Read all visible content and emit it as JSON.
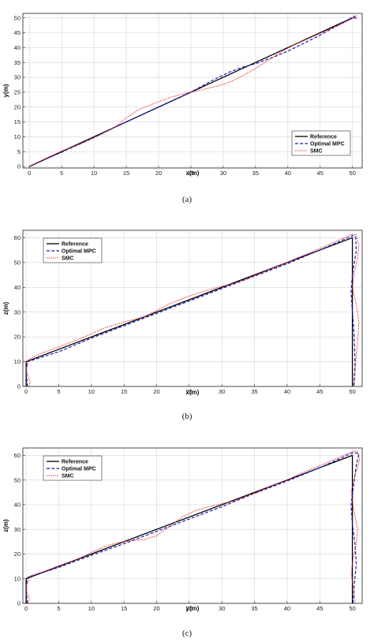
{
  "colors": {
    "reference": "#000000",
    "optimal_mpc": "#1c1cb4",
    "smc": "#ee2222",
    "grid": "#d6d6d6"
  },
  "chart_data": [
    {
      "type": "line",
      "caption": "(a)",
      "xlabel": "x(m)",
      "ylabel": "y(m)",
      "xlim": [
        -1,
        51.5
      ],
      "ylim": [
        -0.5,
        51.5
      ],
      "xticks": [
        0,
        5,
        10,
        15,
        20,
        25,
        30,
        35,
        40,
        45,
        50
      ],
      "yticks": [
        0,
        5,
        10,
        15,
        20,
        25,
        30,
        35,
        40,
        45,
        50
      ],
      "grid": true,
      "legend_position": "bottom-right",
      "series": [
        {
          "name": "Reference",
          "style": "solid",
          "x": [
            0,
            50
          ],
          "y": [
            0,
            50
          ]
        },
        {
          "name": "Optimal MPC",
          "style": "dashed",
          "x": [
            0,
            2,
            5,
            10,
            15,
            20,
            25,
            28,
            31,
            33,
            35,
            38,
            40,
            45,
            48,
            50,
            50.4,
            50.6,
            50.5,
            50.1
          ],
          "y": [
            0,
            2,
            4.8,
            9.8,
            15,
            20,
            25,
            28.6,
            31.8,
            33.4,
            34.6,
            37,
            38.8,
            44.2,
            47.8,
            50.2,
            50.6,
            50.3,
            49.9,
            50
          ]
        },
        {
          "name": "SMC",
          "style": "dotted",
          "x": [
            0,
            2,
            5,
            8,
            10,
            12,
            13.5,
            15,
            17,
            20,
            22,
            24,
            25,
            27,
            29,
            31,
            33,
            35,
            37,
            39,
            41,
            45,
            48,
            50,
            50.3,
            50.6,
            50.5,
            50.2
          ],
          "y": [
            0,
            2.2,
            5.2,
            7.6,
            9.6,
            11.8,
            13.6,
            16.4,
            19.2,
            21.8,
            23.4,
            24.6,
            25,
            26,
            27,
            28.4,
            30.5,
            33,
            35.8,
            38.6,
            41,
            44.8,
            47.6,
            49.8,
            50.2,
            49.8,
            50.6,
            50.3
          ]
        }
      ]
    },
    {
      "type": "line",
      "caption": "(b)",
      "xlabel": "x(m)",
      "ylabel": "z(m)",
      "xlim": [
        -0.5,
        51.5
      ],
      "ylim": [
        0,
        63
      ],
      "xticks": [
        0,
        5,
        10,
        15,
        20,
        25,
        30,
        35,
        40,
        45,
        50
      ],
      "yticks": [
        0,
        10,
        20,
        30,
        40,
        50,
        60
      ],
      "grid": true,
      "legend_position": "top-left",
      "series": [
        {
          "name": "Reference",
          "style": "solid",
          "x": [
            0,
            0,
            50,
            50
          ],
          "y": [
            0,
            10,
            60,
            0
          ]
        },
        {
          "name": "Optimal MPC",
          "style": "dashed",
          "x": [
            0.2,
            0.1,
            0,
            0.2,
            5,
            10,
            20,
            30,
            40,
            45,
            48,
            50.2,
            50.5,
            50.6,
            50,
            49.8,
            50,
            50.2,
            50.3,
            50.4,
            50.3,
            50.2
          ],
          "y": [
            0,
            3,
            6,
            10,
            14,
            19.5,
            29.5,
            39.5,
            49.5,
            55,
            58.5,
            61,
            60,
            55,
            45,
            38,
            30,
            24,
            18,
            10,
            4,
            0
          ]
        },
        {
          "name": "SMC",
          "style": "dotted",
          "x": [
            0.4,
            0.6,
            0.3,
            0,
            0.4,
            2,
            5,
            8,
            10,
            12,
            15,
            18,
            20,
            22,
            25,
            28,
            30,
            32,
            35,
            38,
            40,
            42,
            45,
            48,
            50,
            50.6,
            51,
            50.8,
            50.3,
            50,
            50.6,
            51,
            50.8,
            50.5,
            50.3
          ],
          "y": [
            0,
            2,
            4,
            7,
            11,
            13,
            16,
            19,
            21.2,
            23.6,
            26,
            28,
            30.6,
            33.4,
            36.5,
            39,
            40.4,
            41.6,
            44.6,
            48,
            50,
            52.4,
            55.6,
            59.2,
            61.4,
            61.2,
            57,
            52,
            46,
            40,
            33,
            26,
            18,
            10,
            0
          ]
        }
      ]
    },
    {
      "type": "line",
      "caption": "(c)",
      "xlabel": "y(m)",
      "ylabel": "z(m)",
      "xlim": [
        -0.5,
        51.5
      ],
      "ylim": [
        0,
        63
      ],
      "xticks": [
        0,
        5,
        10,
        15,
        20,
        25,
        30,
        35,
        40,
        45,
        50
      ],
      "yticks": [
        0,
        10,
        20,
        30,
        40,
        50,
        60
      ],
      "grid": true,
      "legend_position": "top-left",
      "series": [
        {
          "name": "Reference",
          "style": "solid",
          "x": [
            0,
            0,
            50,
            50
          ],
          "y": [
            0,
            10,
            60,
            0
          ]
        },
        {
          "name": "Optimal MPC",
          "style": "dashed",
          "x": [
            0.2,
            0,
            0.2,
            5,
            10,
            15,
            20,
            25,
            30,
            35,
            40,
            45,
            48,
            50.2,
            51,
            50.6,
            50.2,
            49.8,
            50,
            50.4,
            50.6,
            50.3,
            50.1
          ],
          "y": [
            0,
            5,
            10.5,
            14.6,
            19.5,
            24.2,
            29.2,
            34.2,
            39.2,
            44.6,
            49.6,
            55,
            58.6,
            61.2,
            60.6,
            56,
            48,
            40,
            32,
            24,
            16,
            8,
            0
          ]
        },
        {
          "name": "SMC",
          "style": "dotted",
          "x": [
            0.3,
            0.5,
            0.2,
            0,
            0.5,
            3,
            5,
            8,
            10,
            12,
            14,
            16,
            18,
            20,
            22,
            24,
            26,
            28,
            30,
            32,
            35,
            38,
            40,
            42,
            45,
            48,
            50,
            50.8,
            51.1,
            50.4,
            49.8,
            50.2,
            50.8,
            50.6,
            50.1,
            49.8,
            50.2,
            50.4
          ],
          "y": [
            0,
            2,
            4,
            7,
            11,
            13.2,
            15.2,
            18,
            20.6,
            23,
            24.6,
            25.4,
            25.8,
            27.4,
            31.2,
            35.2,
            37.6,
            39.2,
            40.4,
            41.6,
            44.6,
            48,
            50,
            52.6,
            55.8,
            59.2,
            61.6,
            61.8,
            58,
            52,
            45,
            38,
            30,
            24,
            18,
            12,
            6,
            0
          ]
        }
      ]
    }
  ]
}
